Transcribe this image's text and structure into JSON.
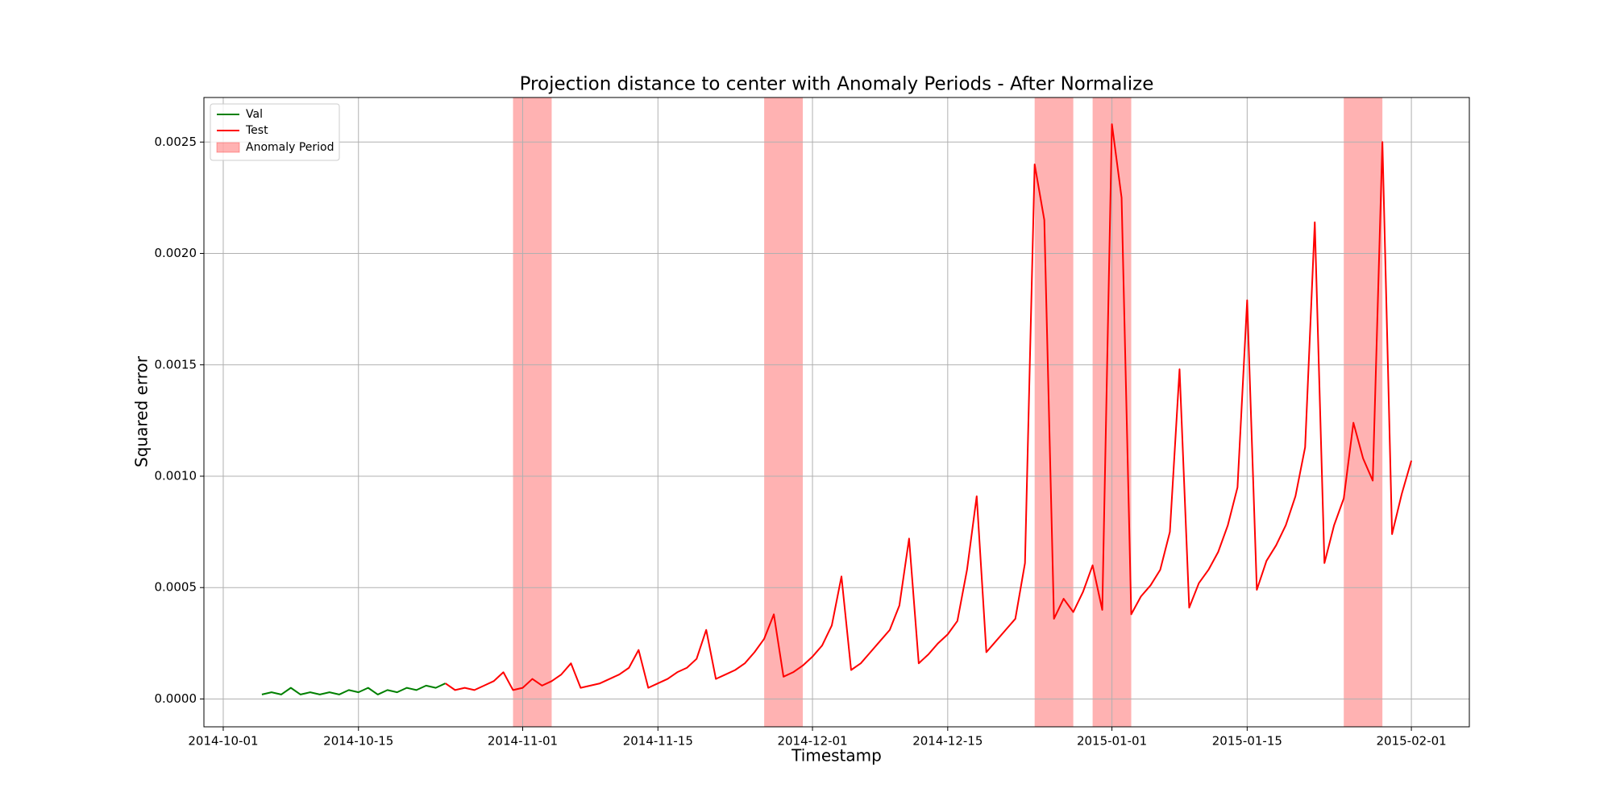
{
  "chart_data": {
    "type": "line",
    "title": "Projection distance to center with Anomaly Periods - After Normalize",
    "xlabel": "Timestamp",
    "ylabel": "Squared error",
    "xlim": [
      "2014-09-29",
      "2015-02-07"
    ],
    "xticks": [
      "2014-10-01",
      "2014-10-15",
      "2014-11-01",
      "2014-11-15",
      "2014-12-01",
      "2014-12-15",
      "2015-01-01",
      "2015-01-15",
      "2015-02-01"
    ],
    "ylim": [
      -0.000125,
      0.0027
    ],
    "yticks": [
      {
        "value": 0,
        "label": "0.0000"
      },
      {
        "value": 0.0005,
        "label": "0.0005"
      },
      {
        "value": 0.001,
        "label": "0.0010"
      },
      {
        "value": 0.0015,
        "label": "0.0015"
      },
      {
        "value": 0.002,
        "label": "0.0020"
      },
      {
        "value": 0.0025,
        "label": "0.0025"
      }
    ],
    "grid": true,
    "legend": "upper left",
    "anomaly_label": "Anomaly Period",
    "anomaly_color": "#ff0000",
    "anomaly_periods": [
      [
        "2014-10-31",
        "2014-11-04"
      ],
      [
        "2014-11-26",
        "2014-11-30"
      ],
      [
        "2014-12-24",
        "2014-12-28"
      ],
      [
        "2014-12-30",
        "2015-01-03"
      ],
      [
        "2015-01-25",
        "2015-01-29"
      ]
    ],
    "series": [
      {
        "name": "Val",
        "color": "#008000",
        "x": [
          "2014-10-05",
          "2014-10-06",
          "2014-10-07",
          "2014-10-08",
          "2014-10-09",
          "2014-10-10",
          "2014-10-11",
          "2014-10-12",
          "2014-10-13",
          "2014-10-14",
          "2014-10-15",
          "2014-10-16",
          "2014-10-17",
          "2014-10-18",
          "2014-10-19",
          "2014-10-20",
          "2014-10-21",
          "2014-10-22",
          "2014-10-23",
          "2014-10-24"
        ],
        "values": [
          2e-05,
          3e-05,
          2e-05,
          5e-05,
          2e-05,
          3e-05,
          2e-05,
          3e-05,
          2e-05,
          4e-05,
          3e-05,
          5e-05,
          2e-05,
          4e-05,
          3e-05,
          5e-05,
          4e-05,
          6e-05,
          5e-05,
          7e-05
        ]
      },
      {
        "name": "Test",
        "color": "#ff0000",
        "x": [
          "2014-10-24",
          "2014-10-25",
          "2014-10-26",
          "2014-10-27",
          "2014-10-28",
          "2014-10-29",
          "2014-10-30",
          "2014-10-31",
          "2014-11-01",
          "2014-11-02",
          "2014-11-03",
          "2014-11-04",
          "2014-11-05",
          "2014-11-06",
          "2014-11-07",
          "2014-11-08",
          "2014-11-09",
          "2014-11-10",
          "2014-11-11",
          "2014-11-12",
          "2014-11-13",
          "2014-11-14",
          "2014-11-15",
          "2014-11-16",
          "2014-11-17",
          "2014-11-18",
          "2014-11-19",
          "2014-11-20",
          "2014-11-21",
          "2014-11-22",
          "2014-11-23",
          "2014-11-24",
          "2014-11-25",
          "2014-11-26",
          "2014-11-27",
          "2014-11-28",
          "2014-11-29",
          "2014-11-30",
          "2014-12-01",
          "2014-12-02",
          "2014-12-03",
          "2014-12-04",
          "2014-12-05",
          "2014-12-06",
          "2014-12-07",
          "2014-12-08",
          "2014-12-09",
          "2014-12-10",
          "2014-12-11",
          "2014-12-12",
          "2014-12-13",
          "2014-12-14",
          "2014-12-15",
          "2014-12-16",
          "2014-12-17",
          "2014-12-18",
          "2014-12-19",
          "2014-12-20",
          "2014-12-21",
          "2014-12-22",
          "2014-12-23",
          "2014-12-24",
          "2014-12-25",
          "2014-12-26",
          "2014-12-27",
          "2014-12-28",
          "2014-12-29",
          "2014-12-30",
          "2014-12-31",
          "2015-01-01",
          "2015-01-02",
          "2015-01-03",
          "2015-01-04",
          "2015-01-05",
          "2015-01-06",
          "2015-01-07",
          "2015-01-08",
          "2015-01-09",
          "2015-01-10",
          "2015-01-11",
          "2015-01-12",
          "2015-01-13",
          "2015-01-14",
          "2015-01-15",
          "2015-01-16",
          "2015-01-17",
          "2015-01-18",
          "2015-01-19",
          "2015-01-20",
          "2015-01-21",
          "2015-01-22",
          "2015-01-23",
          "2015-01-24",
          "2015-01-25",
          "2015-01-26",
          "2015-01-27",
          "2015-01-28",
          "2015-01-29",
          "2015-01-30",
          "2015-01-31",
          "2015-02-01"
        ],
        "values": [
          7e-05,
          4e-05,
          5e-05,
          4e-05,
          6e-05,
          8e-05,
          0.00012,
          4e-05,
          5e-05,
          9e-05,
          6e-05,
          8e-05,
          0.00011,
          0.00016,
          5e-05,
          6e-05,
          7e-05,
          9e-05,
          0.00011,
          0.00014,
          0.00022,
          5e-05,
          7e-05,
          9e-05,
          0.00012,
          0.00014,
          0.00018,
          0.00031,
          9e-05,
          0.00011,
          0.00013,
          0.00016,
          0.00021,
          0.00027,
          0.00038,
          0.0001,
          0.00012,
          0.00015,
          0.00019,
          0.00024,
          0.00033,
          0.00055,
          0.00013,
          0.00016,
          0.00021,
          0.00026,
          0.00031,
          0.00042,
          0.00072,
          0.00016,
          0.0002,
          0.00025,
          0.00029,
          0.00035,
          0.00058,
          0.00091,
          0.00021,
          0.00026,
          0.00031,
          0.00036,
          0.00061,
          0.0024,
          0.00215,
          0.00036,
          0.00045,
          0.00039,
          0.00048,
          0.0006,
          0.0004,
          0.00258,
          0.00225,
          0.00038,
          0.00046,
          0.00051,
          0.00058,
          0.00075,
          0.00148,
          0.00041,
          0.00052,
          0.00058,
          0.00066,
          0.00078,
          0.00095,
          0.00179,
          0.00049,
          0.00062,
          0.00069,
          0.00078,
          0.00091,
          0.00113,
          0.00214,
          0.00061,
          0.00078,
          0.0009,
          0.00124,
          0.00108,
          0.00098,
          0.0025,
          0.00074,
          0.00092,
          0.00107
        ]
      }
    ]
  }
}
